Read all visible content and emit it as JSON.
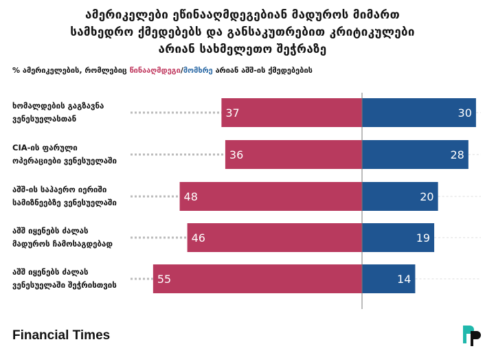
{
  "title_lines": [
    "ამერიკელები ეწინააღმდეგებიან მადუროს მიმართ",
    "სამხედრო ქმედებებს და განსაკუთრებით კრიტიკულები",
    "არიან სახმელეთო შეჭრაზე"
  ],
  "subtitle": {
    "prefix": "% ამერიკელების, რომლებიც ",
    "oppose": "წინააღმდეგი",
    "sep": "/",
    "support": "მომხრე",
    "suffix": " არიან აშშ-ის ქმედებების"
  },
  "source": "Financial Times",
  "colors": {
    "oppose": "#b83a5e",
    "support": "#1f5591"
  },
  "chart_data": {
    "type": "bar",
    "orientation": "horizontal-diverging",
    "categories": [
      [
        "ხომალდების გაგზავნა",
        "ვენესუელასთან"
      ],
      [
        "CIA-ის ფარული",
        "ოპერაციები ვენესუელაში"
      ],
      [
        "აშშ-ის საჰაერო იერიში",
        "სამიზნეებზე ვენესუელაში"
      ],
      [
        "აშშ იყენებს ძალას",
        "მადუროს ჩამოსაგდებად"
      ],
      [
        "აშშ იყენებს ძალას",
        "ვენესუელაში შეჭრისთვის"
      ]
    ],
    "series": [
      {
        "name": "წინააღმდეგი",
        "values": [
          37,
          36,
          48,
          46,
          55
        ]
      },
      {
        "name": "მომხრე",
        "values": [
          30,
          28,
          20,
          19,
          14
        ]
      }
    ],
    "unit": "%"
  }
}
